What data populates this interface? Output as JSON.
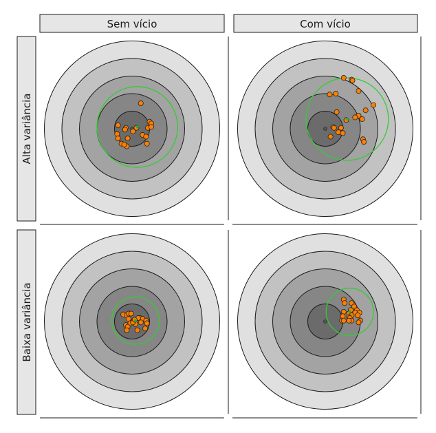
{
  "figure": {
    "column_labels": [
      "Sem vício",
      "Com vício"
    ],
    "row_labels": [
      "Alta variância",
      "Baixa variância"
    ]
  },
  "colors": {
    "strip_fill": "#e6e6e6",
    "strip_border": "#1a1a1a",
    "ring_fills": [
      "#e0e0e0",
      "#c2c2c2",
      "#a3a3a3",
      "#868686",
      "#6b6b6b"
    ],
    "ring_stroke": "#1a1a1a",
    "point_fill": "#ff7f00",
    "point_stroke": "#222222",
    "spread_circle": "#33cc33",
    "mean_marker": "#33aa33",
    "center_dot": "#555555"
  },
  "chart_data": {
    "type": "scatter",
    "description_units": "target units: target center = (0,0), outer ring radius = 5, rings at 1..5",
    "panels": [
      {
        "row": "Alta variância",
        "col": "Sem vício",
        "spread_radius": 2.3,
        "mean": [
          0.3,
          0.1
        ],
        "points": [
          [
            0.5,
            1.45
          ],
          [
            0.25,
            0.05
          ],
          [
            -0.35,
            0.05
          ],
          [
            0.05,
            -0.15
          ],
          [
            -0.8,
            0.2
          ],
          [
            -0.4,
            -0.05
          ],
          [
            -0.25,
            -0.55
          ],
          [
            0.6,
            -0.35
          ],
          [
            0.8,
            -0.45
          ],
          [
            0.9,
            0.05
          ],
          [
            1.0,
            0.4
          ],
          [
            1.1,
            0.3
          ],
          [
            1.1,
            0.1
          ],
          [
            -0.85,
            -0.3
          ],
          [
            -0.8,
            -0.55
          ],
          [
            -0.6,
            -0.85
          ],
          [
            -0.3,
            -1.0
          ],
          [
            0.85,
            -0.85
          ],
          [
            -0.45,
            -0.9
          ]
        ]
      },
      {
        "row": "Alta variância",
        "col": "Com vício",
        "spread_radius": 2.35,
        "mean": [
          1.25,
          0.55
        ],
        "points": [
          [
            1.05,
            2.9
          ],
          [
            1.5,
            2.8
          ],
          [
            1.55,
            2.75
          ],
          [
            0.6,
            2.0
          ],
          [
            0.25,
            1.95
          ],
          [
            1.9,
            2.15
          ],
          [
            2.75,
            1.35
          ],
          [
            2.3,
            1.05
          ],
          [
            0.65,
            0.95
          ],
          [
            1.9,
            0.75
          ],
          [
            1.7,
            0.65
          ],
          [
            2.1,
            0.55
          ],
          [
            1.2,
            0.5
          ],
          [
            0.45,
            0.1
          ],
          [
            0.5,
            0.05
          ],
          [
            0.9,
            0.05
          ],
          [
            0.75,
            -0.2
          ],
          [
            1.0,
            -0.25
          ],
          [
            0.3,
            -0.45
          ],
          [
            2.15,
            -0.6
          ],
          [
            2.2,
            -0.75
          ]
        ]
      },
      {
        "row": "Baixa variância",
        "col": "Sem vício",
        "spread_radius": 1.35,
        "mean": [
          0.2,
          0.05
        ],
        "points": [
          [
            -0.5,
            0.4
          ],
          [
            -0.3,
            0.35
          ],
          [
            -0.2,
            0.45
          ],
          [
            -0.05,
            0.45
          ],
          [
            0.45,
            0.2
          ],
          [
            0.6,
            0.15
          ],
          [
            -0.2,
            0.15
          ],
          [
            0.35,
            0.2
          ],
          [
            -0.1,
            -0.1
          ],
          [
            0.2,
            -0.15
          ],
          [
            0.5,
            -0.05
          ],
          [
            0.8,
            0.05
          ],
          [
            0.85,
            -0.1
          ],
          [
            0.1,
            0.05
          ],
          [
            0.05,
            -0.05
          ],
          [
            -0.35,
            -0.2
          ],
          [
            -0.25,
            -0.3
          ],
          [
            -0.3,
            -0.5
          ],
          [
            0.3,
            -0.5
          ],
          [
            0.75,
            -0.4
          ],
          [
            0.15,
            0.1
          ]
        ]
      },
      {
        "row": "Baixa variância",
        "col": "Com vício",
        "spread_radius": 1.35,
        "mean": [
          1.4,
          0.55
        ],
        "points": [
          [
            1.05,
            1.25
          ],
          [
            1.5,
            1.05
          ],
          [
            1.1,
            1.05
          ],
          [
            1.65,
            0.85
          ],
          [
            1.8,
            0.65
          ],
          [
            1.7,
            0.5
          ],
          [
            1.45,
            0.65
          ],
          [
            1.35,
            0.45
          ],
          [
            1.05,
            0.55
          ],
          [
            1.95,
            0.5
          ],
          [
            1.5,
            0.35
          ],
          [
            1.35,
            0.25
          ],
          [
            1.4,
            0.2
          ],
          [
            1.0,
            0.3
          ],
          [
            1.5,
            0.05
          ],
          [
            1.35,
            0.05
          ],
          [
            2.0,
            0.05
          ],
          [
            1.9,
            -0.05
          ],
          [
            0.95,
            0.05
          ],
          [
            1.05,
            0.05
          ],
          [
            1.85,
            0.35
          ]
        ]
      }
    ]
  }
}
